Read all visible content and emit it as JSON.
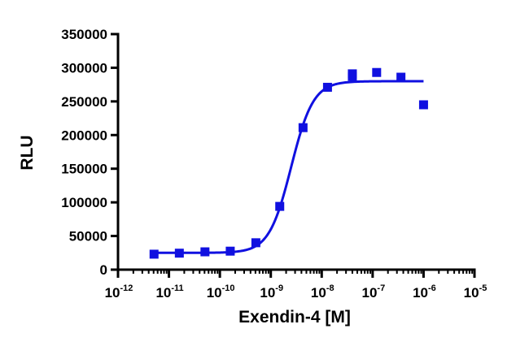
{
  "chart_data": {
    "type": "scatter",
    "title": "",
    "xlabel": "Exendin-4 [M]",
    "ylabel": "RLU",
    "x_scale": "log10",
    "xlim": [
      1e-12,
      1e-05
    ],
    "ylim": [
      0,
      350000
    ],
    "grid": false,
    "y_ticks": [
      0,
      50000,
      100000,
      150000,
      200000,
      250000,
      300000,
      350000
    ],
    "y_tick_labels": [
      "0",
      "50000",
      "100000",
      "150000",
      "200000",
      "250000",
      "300000",
      "350000"
    ],
    "x_ticks": [
      {
        "base": "10",
        "exp": "-12"
      },
      {
        "base": "10",
        "exp": "-11"
      },
      {
        "base": "10",
        "exp": "-10"
      },
      {
        "base": "10",
        "exp": "-9"
      },
      {
        "base": "10",
        "exp": "-8"
      },
      {
        "base": "10",
        "exp": "-7"
      },
      {
        "base": "10",
        "exp": "-6"
      },
      {
        "base": "10",
        "exp": "-5"
      }
    ],
    "marker_color": "#1010e0",
    "curve_color": "#1010e0",
    "points": [
      {
        "x": 5.1e-12,
        "y": 23000
      },
      {
        "x": 1.6e-11,
        "y": 24500
      },
      {
        "x": 5.1e-11,
        "y": 26500
      },
      {
        "x": 1.6e-10,
        "y": 27500
      },
      {
        "x": 5.1e-10,
        "y": 40000
      },
      {
        "x": 1.5e-09,
        "y": 94000
      },
      {
        "x": 4.3e-09,
        "y": 211000
      },
      {
        "x": 1.3e-08,
        "y": 271000
      },
      {
        "x": 4e-08,
        "y": 291000
      },
      {
        "x": 4e-08,
        "y": 287000
      },
      {
        "x": 1.2e-07,
        "y": 293000
      },
      {
        "x": 3.6e-07,
        "y": 286000
      },
      {
        "x": 1e-06,
        "y": 245000
      }
    ],
    "fit": {
      "model": "four-parameter logistic",
      "bottom": 25000,
      "top": 280000,
      "log_ec50": -8.6,
      "hill_slope": 2.0,
      "x_range": [
        5.1e-12,
        1e-06
      ]
    }
  }
}
